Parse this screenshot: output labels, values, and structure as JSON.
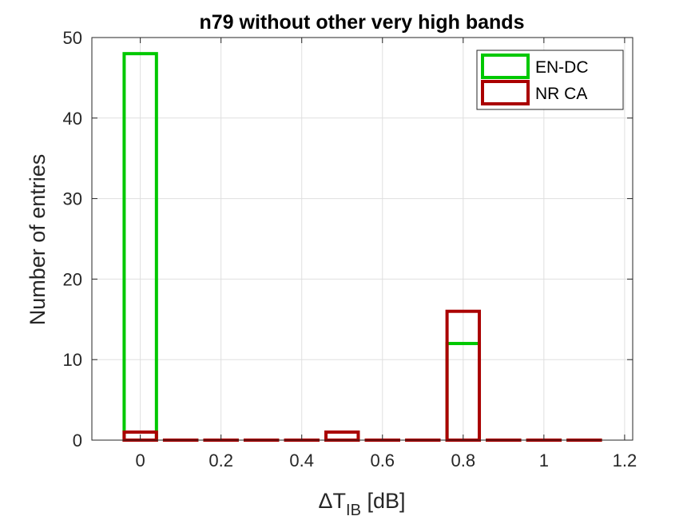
{
  "chart_data": {
    "type": "bar",
    "title": "n79 without other very high bands",
    "xlabel_main": "ΔT",
    "xlabel_sub": "IB",
    "xlabel_unit": " [dB]",
    "ylabel": "Number of entries",
    "xlim": [
      -0.12,
      1.22
    ],
    "ylim": [
      0,
      50
    ],
    "xticks": [
      0,
      0.2,
      0.4,
      0.6,
      0.8,
      1,
      1.2
    ],
    "xtick_labels": [
      "0",
      "0.2",
      "0.4",
      "0.6",
      "0.8",
      "1",
      "1.2"
    ],
    "yticks": [
      0,
      10,
      20,
      30,
      40,
      50
    ],
    "ytick_labels": [
      "0",
      "10",
      "20",
      "30",
      "40",
      "50"
    ],
    "bin_width": 0.08,
    "bins": [
      0,
      0.1,
      0.2,
      0.3,
      0.4,
      0.5,
      0.6,
      0.7,
      0.8,
      0.9,
      1.0,
      1.1
    ],
    "grid": true,
    "legend_position": "top-right",
    "series": [
      {
        "name": "EN-DC",
        "color": "#00c800",
        "values": [
          48,
          0,
          0,
          0,
          0,
          0,
          0,
          0,
          12,
          0,
          0,
          0
        ]
      },
      {
        "name": "NR CA",
        "color": "#aa0000",
        "values": [
          1,
          0,
          0,
          0,
          0,
          1,
          0,
          0,
          16,
          0,
          0,
          0
        ]
      }
    ]
  }
}
